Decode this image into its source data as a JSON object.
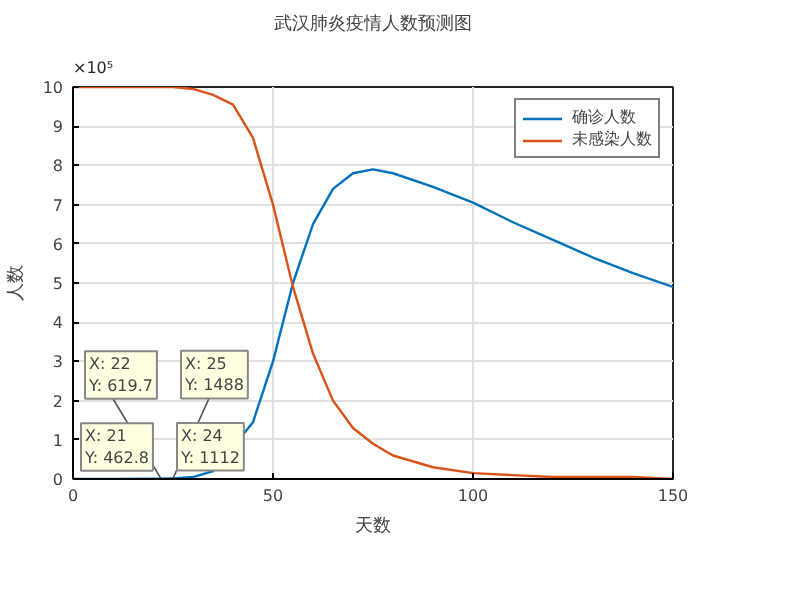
{
  "chart_data": {
    "type": "line",
    "title": "武汉肺炎疫情人数预测图",
    "xlabel": "天数",
    "ylabel": "人数",
    "x": [
      0,
      10,
      21,
      22,
      24,
      25,
      30,
      35,
      40,
      45,
      50,
      55,
      60,
      65,
      70,
      75,
      80,
      90,
      100,
      110,
      120,
      130,
      140,
      150
    ],
    "series": [
      {
        "name": "确诊人数",
        "color": "#0072bd",
        "x": [
          0,
          10,
          21,
          22,
          24,
          25,
          30,
          35,
          45,
          50,
          55,
          60,
          65,
          70,
          75,
          80,
          90,
          100,
          110,
          120,
          130,
          140,
          150
        ],
        "values": [
          0,
          0,
          0.004628,
          0.006197,
          0.01112,
          0.01488,
          0.05,
          0.2,
          1.45,
          3,
          5,
          6.5,
          7.4,
          7.8,
          7.9,
          7.8,
          7.45,
          7.05,
          6.55,
          6.1,
          5.65,
          5.25,
          4.9
        ]
      },
      {
        "name": "未感染人数",
        "color": "#d95319",
        "values": [
          10,
          10,
          10,
          10,
          10,
          10,
          9.95,
          9.8,
          9.55,
          8.7,
          7,
          4.9,
          3.2,
          2,
          1.3,
          0.9,
          0.6,
          0.3,
          0.15,
          0.1,
          0.05,
          0.05,
          0.05,
          0
        ]
      }
    ],
    "xlim": [
      0,
      150
    ],
    "xticks": [
      0,
      50,
      100,
      150
    ],
    "ylim": [
      0,
      10
    ],
    "yticks": [
      0,
      1,
      2,
      3,
      4,
      5,
      6,
      7,
      8,
      9,
      10
    ],
    "grid": true,
    "legend": "top right",
    "annotations": [
      "×10⁵",
      {
        "text": "X: 21\nY: 462.8",
        "x": 21,
        "y": 0.004628
      },
      {
        "text": "X: 22\nY: 619.7",
        "x": 22,
        "y": 0.006197
      },
      {
        "text": "X: 24\nY: 1112",
        "x": 24,
        "y": 0.01112
      },
      {
        "text": "X: 25\nY: 1488",
        "x": 25,
        "y": 0.01488
      }
    ]
  }
}
